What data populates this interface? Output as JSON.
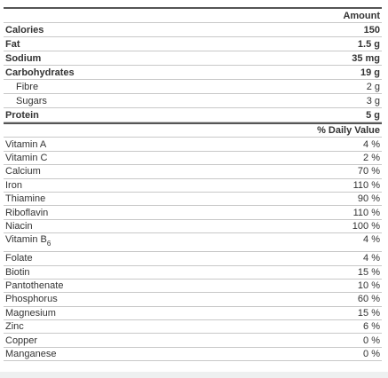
{
  "nutrients": {
    "header": "Amount",
    "rows": [
      {
        "label": "Calories",
        "amount": "150",
        "bold": true
      },
      {
        "label": "Fat",
        "amount": "1.5 g",
        "bold": true
      },
      {
        "label": "Sodium",
        "amount": "35 mg",
        "bold": true
      },
      {
        "label": "Carbohydrates",
        "amount": "19 g",
        "bold": true
      },
      {
        "label": "Fibre",
        "amount": "2 g",
        "indent": true
      },
      {
        "label": "Sugars",
        "amount": "3 g",
        "indent": true
      },
      {
        "label": "Protein",
        "amount": "5 g",
        "bold": true
      }
    ]
  },
  "vitamins": {
    "header": "% Daily Value",
    "rows": [
      {
        "label": "Vitamin A",
        "value": "4 %"
      },
      {
        "label": "Vitamin C",
        "value": "2 %"
      },
      {
        "label": "Calcium",
        "value": "70 %"
      },
      {
        "label": "Iron",
        "value": "110 %"
      },
      {
        "label": "Thiamine",
        "value": "90 %"
      },
      {
        "label": "Riboflavin",
        "value": "110 %"
      },
      {
        "label": "Niacin",
        "value": "100 %"
      },
      {
        "label": "Vitamin B",
        "sub": "6",
        "value": "4 %"
      },
      {
        "label": "Folate",
        "value": "4 %"
      },
      {
        "label": "Biotin",
        "value": "15 %"
      },
      {
        "label": "Pantothenate",
        "value": "10 %"
      },
      {
        "label": "Phosphorus",
        "value": "60 %"
      },
      {
        "label": "Magnesium",
        "value": "15 %"
      },
      {
        "label": "Zinc",
        "value": "6 %"
      },
      {
        "label": "Copper",
        "value": "0 %"
      },
      {
        "label": "Manganese",
        "value": "0 %"
      }
    ]
  }
}
